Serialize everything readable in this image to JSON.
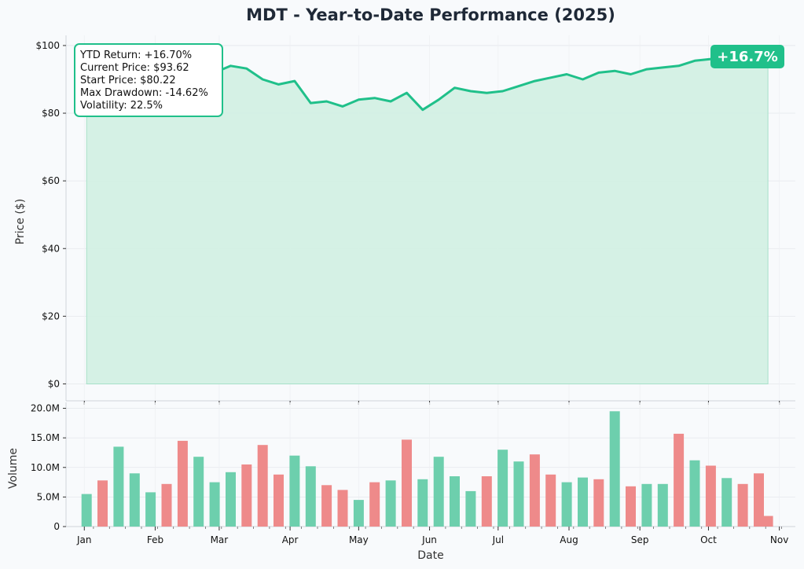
{
  "chart_data": [
    {
      "type": "area",
      "title": "MDT - Year-to-Date Performance (2025)",
      "xlabel": "",
      "ylabel": "Price ($)",
      "ylim": [
        0,
        103
      ],
      "yticks": [
        0,
        20,
        40,
        60,
        80,
        100
      ],
      "ytick_labels": [
        "$0",
        "$20",
        "$40",
        "$60",
        "$80",
        "$100"
      ],
      "grid": true,
      "x": [
        "2025-01-02",
        "2025-01-09",
        "2025-01-16",
        "2025-01-23",
        "2025-01-30",
        "2025-02-06",
        "2025-02-13",
        "2025-02-20",
        "2025-02-27",
        "2025-03-06",
        "2025-03-13",
        "2025-03-20",
        "2025-03-27",
        "2025-04-03",
        "2025-04-10",
        "2025-04-17",
        "2025-04-24",
        "2025-05-01",
        "2025-05-08",
        "2025-05-15",
        "2025-05-22",
        "2025-05-29",
        "2025-06-05",
        "2025-06-12",
        "2025-06-19",
        "2025-06-26",
        "2025-07-03",
        "2025-07-10",
        "2025-07-17",
        "2025-07-24",
        "2025-07-31",
        "2025-08-07",
        "2025-08-14",
        "2025-08-21",
        "2025-08-28",
        "2025-09-04",
        "2025-09-11",
        "2025-09-18",
        "2025-09-25",
        "2025-10-02",
        "2025-10-09",
        "2025-10-16",
        "2025-10-23",
        "2025-10-27"
      ],
      "values": [
        80.22,
        81.0,
        82.5,
        85.0,
        88.0,
        90.5,
        90.0,
        91.5,
        92.0,
        94.0,
        93.2,
        90.0,
        88.5,
        89.5,
        83.0,
        83.5,
        82.0,
        84.0,
        84.5,
        83.5,
        86.0,
        81.0,
        84.0,
        87.5,
        86.5,
        86.0,
        86.5,
        88.0,
        89.5,
        90.5,
        91.5,
        90.0,
        92.0,
        92.5,
        91.5,
        93.0,
        93.5,
        94.0,
        95.5,
        96.0,
        97.0,
        96.5,
        96.0,
        93.62
      ],
      "stats_box": [
        "YTD Return: +16.70%",
        "Current Price: $93.62",
        "Start Price: $80.22",
        "Max Drawdown: -14.62%",
        "Volatility: 22.5%"
      ],
      "badge": "+16.7%",
      "colors": {
        "line": "#20c08a",
        "fill": "#d3f0e4",
        "badge": "#20c08a"
      }
    },
    {
      "type": "bar",
      "xlabel": "Date",
      "ylabel": "Volume",
      "ylim": [
        0,
        21000000
      ],
      "yticks": [
        0,
        5000000,
        10000000,
        15000000,
        20000000
      ],
      "ytick_labels": [
        "0",
        "5.0M",
        "10.0M",
        "15.0M",
        "20.0M"
      ],
      "xtick_labels": [
        "Jan",
        "Feb",
        "Mar",
        "Apr",
        "May",
        "Jun",
        "Jul",
        "Aug",
        "Sep",
        "Oct",
        "Nov"
      ],
      "grid": true,
      "x": [
        "2025-01-02",
        "2025-01-09",
        "2025-01-16",
        "2025-01-23",
        "2025-01-30",
        "2025-02-06",
        "2025-02-13",
        "2025-02-20",
        "2025-02-27",
        "2025-03-06",
        "2025-03-13",
        "2025-03-20",
        "2025-03-27",
        "2025-04-03",
        "2025-04-10",
        "2025-04-17",
        "2025-04-24",
        "2025-05-01",
        "2025-05-08",
        "2025-05-15",
        "2025-05-22",
        "2025-05-29",
        "2025-06-05",
        "2025-06-12",
        "2025-06-19",
        "2025-06-26",
        "2025-07-03",
        "2025-07-10",
        "2025-07-17",
        "2025-07-24",
        "2025-07-31",
        "2025-08-07",
        "2025-08-14",
        "2025-08-21",
        "2025-08-28",
        "2025-09-04",
        "2025-09-11",
        "2025-09-18",
        "2025-09-25",
        "2025-10-02",
        "2025-10-09",
        "2025-10-16",
        "2025-10-23",
        "2025-10-27"
      ],
      "values": [
        5500000,
        7800000,
        13500000,
        9000000,
        5800000,
        7200000,
        14500000,
        11800000,
        7500000,
        9200000,
        10500000,
        13800000,
        8800000,
        12000000,
        10200000,
        7000000,
        6200000,
        4500000,
        7500000,
        7800000,
        14700000,
        8000000,
        11800000,
        8500000,
        6000000,
        8500000,
        13000000,
        11000000,
        12200000,
        8800000,
        7500000,
        8300000,
        8000000,
        19500000,
        6800000,
        7200000,
        7200000,
        15700000,
        11200000,
        10300000,
        8200000,
        7200000,
        9000000,
        1800000
      ],
      "up": [
        true,
        false,
        true,
        true,
        true,
        false,
        false,
        true,
        true,
        true,
        false,
        false,
        false,
        true,
        true,
        false,
        false,
        true,
        false,
        true,
        false,
        true,
        true,
        true,
        true,
        false,
        true,
        true,
        false,
        false,
        true,
        true,
        false,
        true,
        false,
        true,
        true,
        false,
        true,
        false,
        true,
        false,
        false,
        false
      ],
      "colors": {
        "up": "#6dcfad",
        "down": "#ee8a8a"
      }
    }
  ]
}
